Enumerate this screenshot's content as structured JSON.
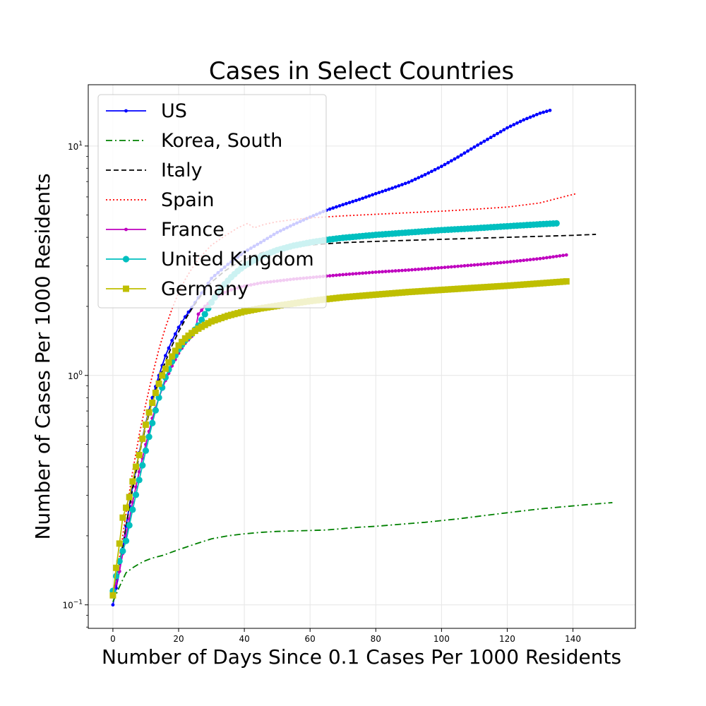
{
  "chart_data": {
    "type": "line",
    "title": "Cases in Select Countries",
    "xlabel": "Number of Days Since 0.1 Cases Per 1000 Residents",
    "ylabel": "Number of Cases Per 1000 Residents",
    "xlim": [
      -7.5,
      159
    ],
    "ylim": [
      0.079,
      18.5
    ],
    "yscale": "log",
    "x_ticks": [
      0,
      20,
      40,
      60,
      80,
      100,
      120,
      140
    ],
    "y_ticks": [
      {
        "value": 0.1,
        "base": "10",
        "exp": "−1"
      },
      {
        "value": 1,
        "base": "10",
        "exp": "0"
      },
      {
        "value": 10,
        "base": "10",
        "exp": "1"
      }
    ],
    "grid": true,
    "legend_position": "top-left",
    "series": [
      {
        "name": "US",
        "color": "#0000ff",
        "line": "solid",
        "marker": "dot",
        "last_day": 133,
        "points": [
          [
            0,
            0.1
          ],
          [
            2,
            0.14
          ],
          [
            4,
            0.22
          ],
          [
            6,
            0.33
          ],
          [
            8,
            0.46
          ],
          [
            10,
            0.62
          ],
          [
            12,
            0.8
          ],
          [
            14,
            1.0
          ],
          [
            16,
            1.22
          ],
          [
            18,
            1.42
          ],
          [
            20,
            1.62
          ],
          [
            22,
            1.8
          ],
          [
            24,
            1.98
          ],
          [
            26,
            2.18
          ],
          [
            28,
            2.4
          ],
          [
            30,
            2.65
          ],
          [
            35,
            3.05
          ],
          [
            40,
            3.45
          ],
          [
            45,
            3.8
          ],
          [
            50,
            4.2
          ],
          [
            55,
            4.55
          ],
          [
            60,
            4.9
          ],
          [
            65,
            5.25
          ],
          [
            70,
            5.55
          ],
          [
            75,
            5.85
          ],
          [
            80,
            6.2
          ],
          [
            85,
            6.55
          ],
          [
            90,
            6.95
          ],
          [
            95,
            7.5
          ],
          [
            100,
            8.15
          ],
          [
            105,
            8.95
          ],
          [
            110,
            9.9
          ],
          [
            115,
            10.9
          ],
          [
            120,
            12.0
          ],
          [
            125,
            13.0
          ],
          [
            130,
            13.9
          ],
          [
            133,
            14.3
          ]
        ]
      },
      {
        "name": "Korea, South",
        "color": "#008000",
        "line": "dashdot",
        "marker": "none",
        "last_day": 152,
        "points": [
          [
            0,
            0.103
          ],
          [
            2,
            0.12
          ],
          [
            4,
            0.138
          ],
          [
            6,
            0.145
          ],
          [
            8,
            0.151
          ],
          [
            10,
            0.156
          ],
          [
            12,
            0.16
          ],
          [
            15,
            0.164
          ],
          [
            20,
            0.174
          ],
          [
            25,
            0.184
          ],
          [
            30,
            0.194
          ],
          [
            35,
            0.2
          ],
          [
            40,
            0.204
          ],
          [
            45,
            0.207
          ],
          [
            50,
            0.209
          ],
          [
            55,
            0.21
          ],
          [
            60,
            0.211
          ],
          [
            65,
            0.212
          ],
          [
            70,
            0.215
          ],
          [
            75,
            0.218
          ],
          [
            80,
            0.22
          ],
          [
            85,
            0.223
          ],
          [
            90,
            0.226
          ],
          [
            95,
            0.229
          ],
          [
            100,
            0.233
          ],
          [
            105,
            0.237
          ],
          [
            110,
            0.242
          ],
          [
            115,
            0.247
          ],
          [
            120,
            0.252
          ],
          [
            125,
            0.257
          ],
          [
            130,
            0.262
          ],
          [
            135,
            0.266
          ],
          [
            140,
            0.27
          ],
          [
            145,
            0.274
          ],
          [
            152,
            0.279
          ]
        ]
      },
      {
        "name": "Italy",
        "color": "#000000",
        "line": "dashed",
        "marker": "none",
        "last_day": 147,
        "points": [
          [
            0,
            0.11
          ],
          [
            2,
            0.15
          ],
          [
            4,
            0.22
          ],
          [
            6,
            0.32
          ],
          [
            8,
            0.45
          ],
          [
            10,
            0.6
          ],
          [
            12,
            0.77
          ],
          [
            14,
            0.95
          ],
          [
            16,
            1.15
          ],
          [
            18,
            1.35
          ],
          [
            20,
            1.55
          ],
          [
            22,
            1.75
          ],
          [
            24,
            1.95
          ],
          [
            26,
            2.15
          ],
          [
            28,
            2.35
          ],
          [
            30,
            2.55
          ],
          [
            34,
            2.85
          ],
          [
            38,
            3.1
          ],
          [
            42,
            3.3
          ],
          [
            46,
            3.45
          ],
          [
            50,
            3.55
          ],
          [
            55,
            3.63
          ],
          [
            60,
            3.7
          ],
          [
            65,
            3.75
          ],
          [
            70,
            3.79
          ],
          [
            80,
            3.84
          ],
          [
            90,
            3.88
          ],
          [
            100,
            3.92
          ],
          [
            110,
            3.96
          ],
          [
            120,
            4.0
          ],
          [
            130,
            4.04
          ],
          [
            140,
            4.08
          ],
          [
            147,
            4.12
          ]
        ]
      },
      {
        "name": "Spain",
        "color": "#ff0000",
        "line": "dotted",
        "marker": "none",
        "last_day": 141,
        "points": [
          [
            0,
            0.11
          ],
          [
            2,
            0.16
          ],
          [
            4,
            0.25
          ],
          [
            6,
            0.38
          ],
          [
            8,
            0.55
          ],
          [
            10,
            0.75
          ],
          [
            12,
            1.0
          ],
          [
            14,
            1.3
          ],
          [
            16,
            1.62
          ],
          [
            18,
            1.95
          ],
          [
            20,
            2.3
          ],
          [
            22,
            2.62
          ],
          [
            24,
            2.92
          ],
          [
            26,
            3.2
          ],
          [
            28,
            3.45
          ],
          [
            30,
            3.7
          ],
          [
            34,
            4.05
          ],
          [
            38,
            4.4
          ],
          [
            41,
            4.6
          ],
          [
            43,
            4.4
          ],
          [
            46,
            4.55
          ],
          [
            50,
            4.68
          ],
          [
            55,
            4.78
          ],
          [
            60,
            4.86
          ],
          [
            70,
            4.96
          ],
          [
            80,
            5.04
          ],
          [
            90,
            5.12
          ],
          [
            100,
            5.2
          ],
          [
            110,
            5.3
          ],
          [
            120,
            5.42
          ],
          [
            130,
            5.65
          ],
          [
            136,
            5.95
          ],
          [
            141,
            6.2
          ]
        ]
      },
      {
        "name": "France",
        "color": "#bf00bf",
        "line": "solid",
        "marker": "dot",
        "last_day": 138,
        "points": [
          [
            0,
            0.11
          ],
          [
            2,
            0.14
          ],
          [
            4,
            0.2
          ],
          [
            6,
            0.28
          ],
          [
            8,
            0.38
          ],
          [
            10,
            0.5
          ],
          [
            12,
            0.65
          ],
          [
            14,
            0.8
          ],
          [
            16,
            0.95
          ],
          [
            18,
            1.1
          ],
          [
            20,
            1.25
          ],
          [
            22,
            1.38
          ],
          [
            24,
            1.48
          ],
          [
            25,
            1.55
          ],
          [
            26,
            1.85
          ],
          [
            28,
            2.0
          ],
          [
            30,
            2.12
          ],
          [
            32,
            2.22
          ],
          [
            34,
            2.3
          ],
          [
            36,
            2.36
          ],
          [
            38,
            2.41
          ],
          [
            40,
            2.45
          ],
          [
            45,
            2.53
          ],
          [
            50,
            2.58
          ],
          [
            55,
            2.63
          ],
          [
            60,
            2.67
          ],
          [
            65,
            2.71
          ],
          [
            70,
            2.75
          ],
          [
            80,
            2.82
          ],
          [
            90,
            2.88
          ],
          [
            100,
            2.95
          ],
          [
            110,
            3.03
          ],
          [
            120,
            3.12
          ],
          [
            130,
            3.23
          ],
          [
            138,
            3.35
          ]
        ]
      },
      {
        "name": "United Kingdom",
        "color": "#00bfbf",
        "line": "solid",
        "marker": "circle",
        "last_day": 135,
        "points": [
          [
            0,
            0.115
          ],
          [
            2,
            0.155
          ],
          [
            4,
            0.19
          ],
          [
            6,
            0.26
          ],
          [
            8,
            0.35
          ],
          [
            10,
            0.47
          ],
          [
            12,
            0.62
          ],
          [
            14,
            0.8
          ],
          [
            16,
            0.98
          ],
          [
            18,
            1.15
          ],
          [
            20,
            1.3
          ],
          [
            22,
            1.42
          ],
          [
            24,
            1.52
          ],
          [
            26,
            1.65
          ],
          [
            28,
            1.85
          ],
          [
            30,
            2.08
          ],
          [
            32,
            2.3
          ],
          [
            34,
            2.5
          ],
          [
            36,
            2.68
          ],
          [
            38,
            2.85
          ],
          [
            40,
            3.0
          ],
          [
            45,
            3.3
          ],
          [
            50,
            3.52
          ],
          [
            55,
            3.68
          ],
          [
            60,
            3.8
          ],
          [
            65,
            3.9
          ],
          [
            70,
            3.98
          ],
          [
            80,
            4.1
          ],
          [
            90,
            4.2
          ],
          [
            100,
            4.3
          ],
          [
            110,
            4.38
          ],
          [
            120,
            4.47
          ],
          [
            130,
            4.56
          ],
          [
            135,
            4.6
          ]
        ]
      },
      {
        "name": "Germany",
        "color": "#bfbf00",
        "line": "solid",
        "marker": "square",
        "last_day": 138,
        "points": [
          [
            0,
            0.11
          ],
          [
            1,
            0.145
          ],
          [
            2,
            0.185
          ],
          [
            3,
            0.24
          ],
          [
            4,
            0.265
          ],
          [
            5,
            0.295
          ],
          [
            6,
            0.345
          ],
          [
            7,
            0.4
          ],
          [
            8,
            0.45
          ],
          [
            9,
            0.53
          ],
          [
            10,
            0.61
          ],
          [
            11,
            0.69
          ],
          [
            12,
            0.76
          ],
          [
            13,
            0.84
          ],
          [
            14,
            0.92
          ],
          [
            15,
            1.0
          ],
          [
            16,
            1.07
          ],
          [
            17,
            1.14
          ],
          [
            18,
            1.21
          ],
          [
            19,
            1.28
          ],
          [
            20,
            1.35
          ],
          [
            22,
            1.45
          ],
          [
            24,
            1.53
          ],
          [
            26,
            1.6
          ],
          [
            28,
            1.66
          ],
          [
            30,
            1.72
          ],
          [
            35,
            1.82
          ],
          [
            40,
            1.9
          ],
          [
            45,
            1.96
          ],
          [
            50,
            2.01
          ],
          [
            55,
            2.06
          ],
          [
            60,
            2.11
          ],
          [
            65,
            2.15
          ],
          [
            70,
            2.19
          ],
          [
            80,
            2.25
          ],
          [
            90,
            2.31
          ],
          [
            100,
            2.36
          ],
          [
            110,
            2.41
          ],
          [
            120,
            2.46
          ],
          [
            130,
            2.52
          ],
          [
            138,
            2.57
          ]
        ]
      }
    ]
  }
}
